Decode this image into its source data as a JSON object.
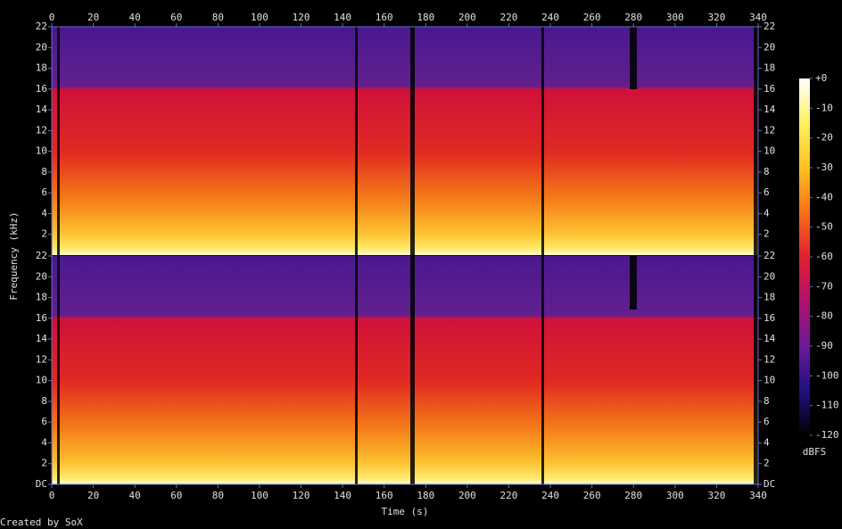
{
  "chart_data": {
    "type": "spectrogram",
    "xlabel": "Time (s)",
    "ylabel": "Frequency (kHz)",
    "xlim": [
      0,
      340
    ],
    "xticks": [
      0,
      20,
      40,
      60,
      80,
      100,
      120,
      140,
      160,
      180,
      200,
      220,
      240,
      260,
      280,
      300,
      320,
      340
    ],
    "channels": [
      {
        "ylim": [
          0,
          22
        ],
        "yticks": [
          2,
          4,
          6,
          8,
          10,
          12,
          14,
          16,
          18,
          20,
          22
        ]
      },
      {
        "ylim": [
          0,
          22
        ],
        "yticks": [
          {
            "value": 0,
            "label": "DC"
          },
          2,
          4,
          6,
          8,
          10,
          12,
          14,
          16,
          18,
          20,
          22
        ]
      }
    ],
    "colorbar": {
      "label": "dBFS",
      "lim": [
        -120,
        0
      ],
      "ticks": [
        {
          "value": 0,
          "label": "+0"
        },
        -10,
        -20,
        -30,
        -40,
        -50,
        -60,
        -70,
        -80,
        -90,
        -100,
        -110,
        -120
      ],
      "colors": [
        "#ffffff",
        "#fff060",
        "#ffc020",
        "#f87018",
        "#e02030",
        "#b01070",
        "#6a1a98",
        "#201080",
        "#000000"
      ]
    }
  },
  "credit": "Created by SoX"
}
